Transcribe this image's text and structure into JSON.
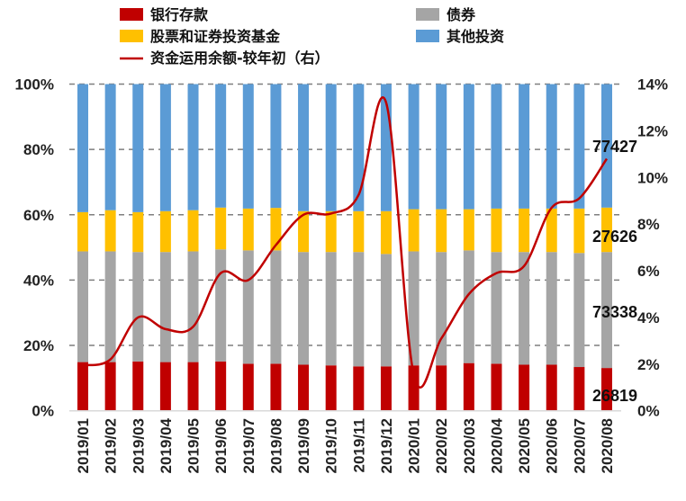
{
  "chart_data": {
    "type": "bar",
    "stacked": "percent",
    "categories": [
      "2019/01",
      "2019/02",
      "2019/03",
      "2019/04",
      "2019/05",
      "2019/06",
      "2019/07",
      "2019/08",
      "2019/09",
      "2019/10",
      "2019/11",
      "2019/12",
      "2020/01",
      "2020/02",
      "2020/03",
      "2020/04",
      "2020/05",
      "2020/06",
      "2020/07",
      "2020/08"
    ],
    "series": [
      {
        "name": "银行存款",
        "color": "#C00000",
        "values": [
          14.9,
          14.9,
          15.1,
          14.9,
          14.9,
          15.1,
          14.4,
          14.4,
          14.1,
          13.9,
          13.6,
          13.6,
          13.9,
          13.9,
          14.6,
          14.4,
          14.1,
          14.1,
          13.4,
          13.1
        ]
      },
      {
        "name": "债券",
        "color": "#A5A5A5",
        "values": [
          33.9,
          33.9,
          33.5,
          33.7,
          33.9,
          34.3,
          34.7,
          34.7,
          34.5,
          34.7,
          35.0,
          34.4,
          34.9,
          34.7,
          34.5,
          34.2,
          34.5,
          34.5,
          34.9,
          35.5
        ]
      },
      {
        "name": "股票和证券投资基金",
        "color": "#FFC000",
        "values": [
          12.0,
          12.6,
          12.2,
          12.5,
          12.6,
          12.8,
          12.8,
          13.0,
          12.5,
          12.5,
          12.5,
          13.1,
          12.9,
          13.1,
          12.6,
          13.3,
          13.3,
          13.3,
          13.6,
          13.6
        ]
      },
      {
        "name": "其他投资",
        "color": "#5B9BD5",
        "values": [
          39.2,
          38.6,
          39.2,
          38.9,
          38.6,
          37.8,
          38.1,
          37.9,
          38.9,
          38.9,
          38.9,
          38.9,
          38.3,
          38.3,
          38.3,
          38.1,
          38.1,
          38.1,
          38.1,
          37.8
        ]
      }
    ],
    "line": {
      "name": "资金运用余额-较年初（右）",
      "color": "#C00000",
      "axis": "right",
      "values": [
        1.95,
        2.2,
        4.0,
        3.5,
        3.6,
        5.9,
        5.6,
        7.1,
        8.4,
        8.45,
        9.25,
        13.2,
        1.55,
        3.1,
        5.0,
        5.9,
        6.2,
        8.7,
        9.1,
        10.8
      ]
    },
    "y_left": {
      "ticks": [
        "0%",
        "20%",
        "40%",
        "60%",
        "80%",
        "100%"
      ],
      "ylim": [
        0,
        100
      ]
    },
    "y_right": {
      "ticks": [
        "0%",
        "2%",
        "4%",
        "6%",
        "8%",
        "10%",
        "12%",
        "14%"
      ],
      "ylim": [
        0,
        14
      ]
    },
    "annotations": [
      {
        "text": "77427",
        "series": "其他投资",
        "category": "2020/08"
      },
      {
        "text": "27626",
        "series": "股票和证券投资基金",
        "category": "2020/08"
      },
      {
        "text": "73338",
        "series": "债券",
        "category": "2020/08"
      },
      {
        "text": "26819",
        "series": "银行存款",
        "category": "2020/08"
      }
    ],
    "grid": true,
    "legend": "top"
  }
}
